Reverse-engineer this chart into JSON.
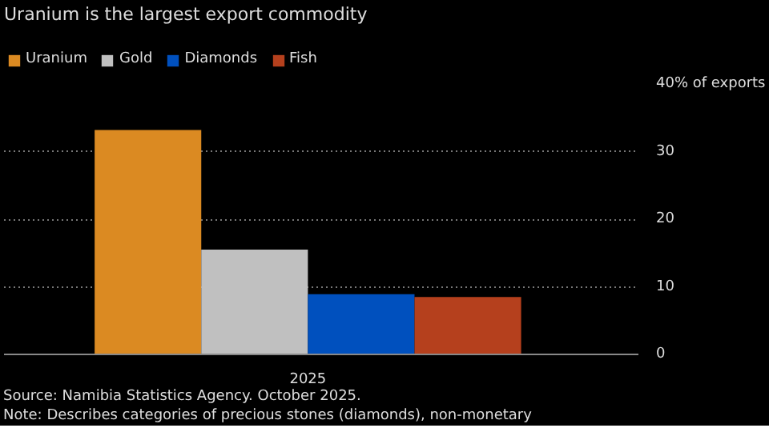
{
  "chart_data": {
    "type": "bar",
    "title": "Uranium is the largest export commodity",
    "categories": [
      "2025"
    ],
    "series": [
      {
        "name": "Uranium",
        "color": "#db8a22",
        "values": [
          33.2
        ]
      },
      {
        "name": "Gold",
        "color": "#c0c0c0",
        "values": [
          15.5
        ]
      },
      {
        "name": "Diamonds",
        "color": "#0050be",
        "values": [
          8.9
        ]
      },
      {
        "name": "Fish",
        "color": "#b5401d",
        "values": [
          8.5
        ]
      }
    ],
    "ylim": [
      0,
      40
    ],
    "yticks": [
      0,
      10,
      20,
      30,
      {
        "value": 40,
        "label": "40% of exports"
      }
    ],
    "grid": "y",
    "legend": "top",
    "annotations": [
      "Source: Namibia Statistics Agency. October 2025.",
      "Note: Describes categories of precious stones (diamonds), non-monetary"
    ]
  }
}
